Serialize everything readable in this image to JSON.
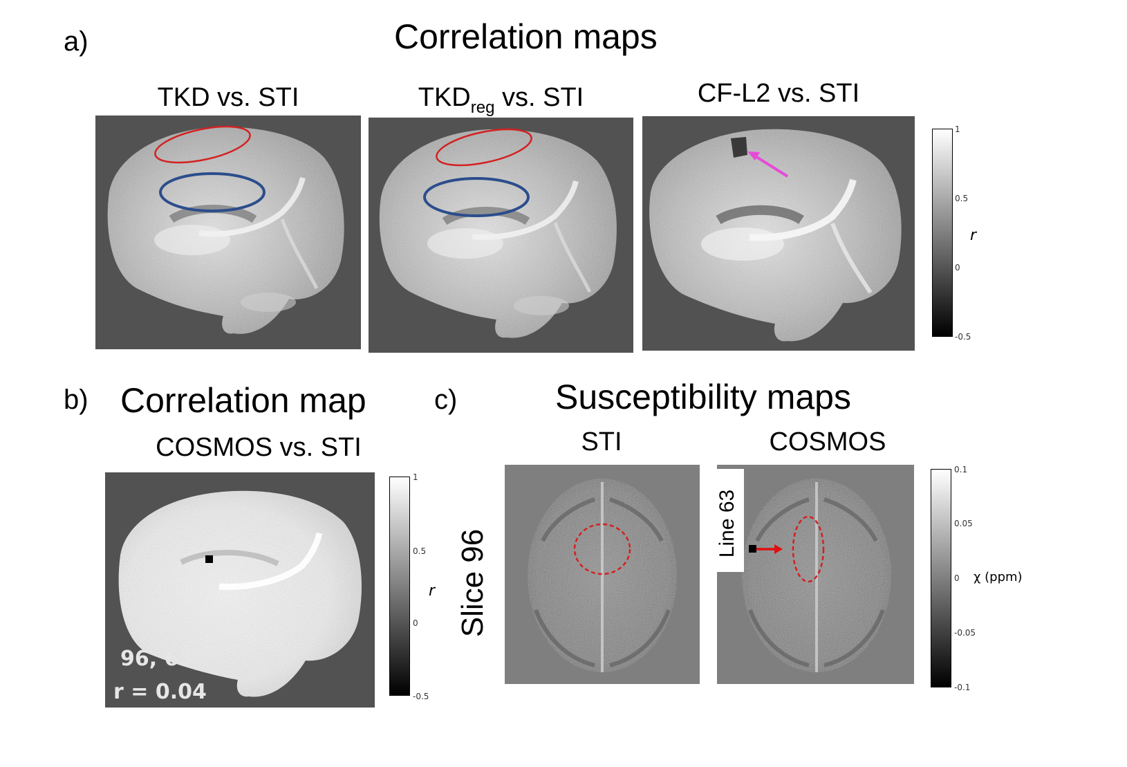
{
  "panel_a": {
    "letter": "a)",
    "title": "Correlation maps",
    "maps": [
      {
        "label_main": "TKD vs. STI",
        "label_pre": "",
        "label_sub": "",
        "label_post": ""
      },
      {
        "label_main": "",
        "label_pre": "TKD",
        "label_sub": "reg",
        "label_post": " vs. STI"
      },
      {
        "label_main": "CF-L2 vs. STI",
        "label_pre": "",
        "label_sub": "",
        "label_post": ""
      }
    ],
    "colorbar": {
      "ticks": [
        "1",
        "0.5",
        "0",
        "-0.5"
      ],
      "label": "r"
    }
  },
  "panel_b": {
    "letter": "b)",
    "title": "Correlation map",
    "subtitle": "COSMOS vs. STI",
    "overlay_coords": "96, 63",
    "overlay_r": "r = 0.04",
    "colorbar": {
      "ticks": [
        "1",
        "0.5",
        "0",
        "-0.5"
      ],
      "label": "r"
    }
  },
  "panel_c": {
    "letter": "c)",
    "title": "Susceptibility maps",
    "maps": [
      {
        "label": "STI"
      },
      {
        "label": "COSMOS"
      }
    ],
    "slice_label": "Slice 96",
    "line_label": "Line 63",
    "colorbar": {
      "ticks": [
        "0.1",
        "0.05",
        "0",
        "-0.05",
        "-0.1"
      ],
      "label": "χ (ppm)"
    }
  },
  "colors": {
    "red_ellipse": "#d42020",
    "blue_ellipse": "#2b4d8c",
    "magenta_arrow": "#e64bd8",
    "red_arrow": "#e01010",
    "background_gray": "#525252"
  }
}
